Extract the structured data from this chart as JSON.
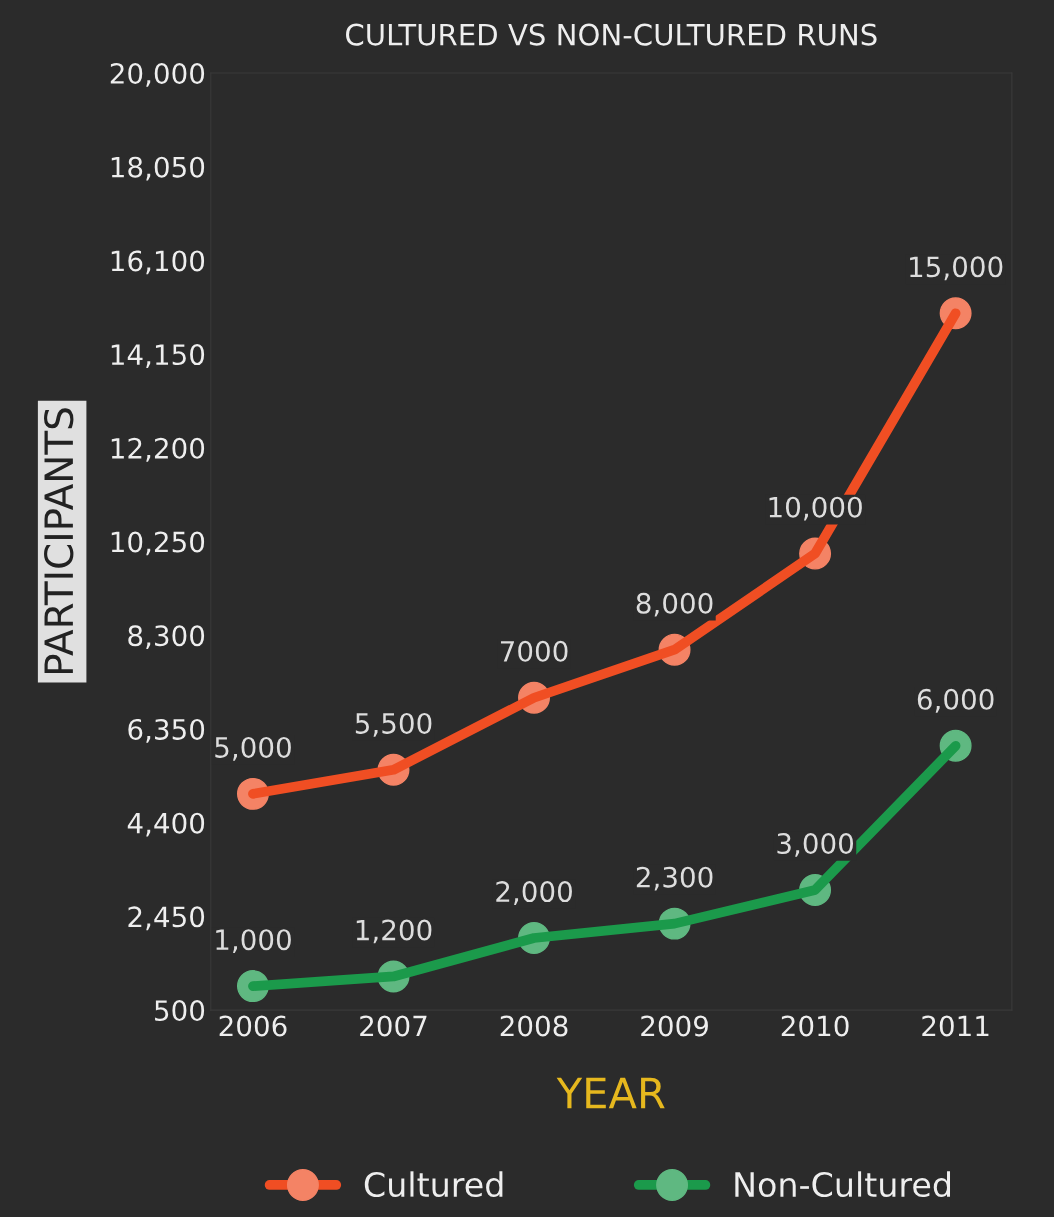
{
  "chart_data": {
    "type": "line",
    "title": "CULTURED VS NON-CULTURED RUNS",
    "xlabel": "YEAR",
    "ylabel": "PARTICIPANTS",
    "categories": [
      "2006",
      "2007",
      "2008",
      "2009",
      "2010",
      "2011"
    ],
    "series": [
      {
        "name": "Cultured",
        "color": "#f04e23",
        "values": [
          5000,
          5500,
          7000,
          8000,
          10000,
          15000
        ],
        "value_labels": [
          "5,000",
          "5,500",
          "7000",
          "8,000",
          "10,000",
          "15,000"
        ]
      },
      {
        "name": "Non-Cultured",
        "color": "#1b9a4b",
        "values": [
          1000,
          1200,
          2000,
          2300,
          3000,
          6000
        ],
        "value_labels": [
          "1,000",
          "1,200",
          "2,000",
          "2,300",
          "3,000",
          "6,000"
        ]
      }
    ],
    "ylim": [
      500,
      20000
    ],
    "yticks": [
      {
        "value": 500,
        "label": "500"
      },
      {
        "value": 2450,
        "label": "2,450"
      },
      {
        "value": 4400,
        "label": "4,400"
      },
      {
        "value": 6350,
        "label": "6,350"
      },
      {
        "value": 8300,
        "label": "8,300"
      },
      {
        "value": 10250,
        "label": "10,250"
      },
      {
        "value": 12200,
        "label": "12,200"
      },
      {
        "value": 14150,
        "label": "14,150"
      },
      {
        "value": 16100,
        "label": "16,100"
      },
      {
        "value": 18050,
        "label": "18,050"
      },
      {
        "value": 20000,
        "label": "20,000"
      }
    ],
    "grid": false,
    "legend": "bottom",
    "marker": "circle",
    "line_style": "solid"
  }
}
